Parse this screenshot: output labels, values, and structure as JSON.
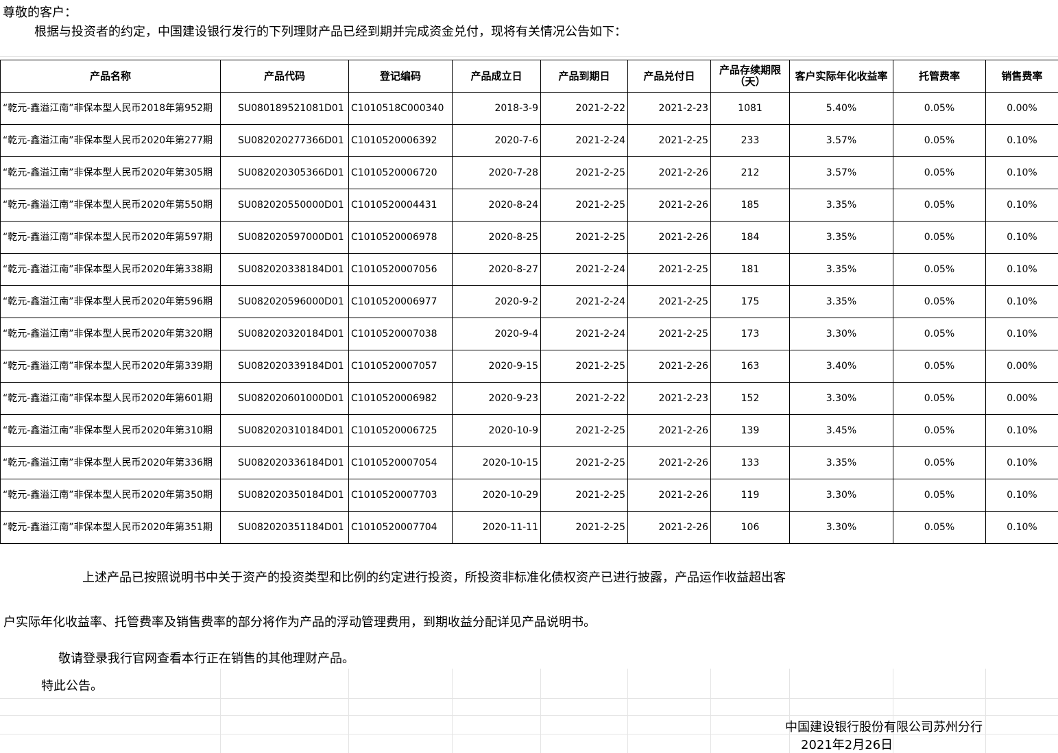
{
  "greeting": "尊敬的客户：",
  "intro": "根据与投资者的约定，中国建设银行发行的下列理财产品已经到期并完成资金兑付，现将有关情况公告如下：",
  "table": {
    "headers": [
      "产品名称",
      "产品代码",
      "登记编码",
      "产品成立日",
      "产品到期日",
      "产品兑付日",
      "产品存续期限（天）",
      "客户实际年化收益率",
      "托管费率",
      "销售费率"
    ],
    "rows": [
      [
        "“乾元-鑫溢江南”非保本型人民币2018年第952期",
        "SU080189521081D01",
        "C1010518C000340",
        "2018-3-9",
        "2021-2-22",
        "2021-2-23",
        "1081",
        "5.40%",
        "0.05%",
        "0.00%"
      ],
      [
        "“乾元-鑫溢江南”非保本型人民币2020年第277期",
        "SU082020277366D01",
        "C1010520006392",
        "2020-7-6",
        "2021-2-24",
        "2021-2-25",
        "233",
        "3.57%",
        "0.05%",
        "0.10%"
      ],
      [
        "“乾元-鑫溢江南”非保本型人民币2020年第305期",
        "SU082020305366D01",
        "C1010520006720",
        "2020-7-28",
        "2021-2-25",
        "2021-2-26",
        "212",
        "3.57%",
        "0.05%",
        "0.10%"
      ],
      [
        "“乾元-鑫溢江南”非保本型人民币2020年第550期",
        "SU082020550000D01",
        "C1010520004431",
        "2020-8-24",
        "2021-2-25",
        "2021-2-26",
        "185",
        "3.35%",
        "0.05%",
        "0.10%"
      ],
      [
        "“乾元-鑫溢江南”非保本型人民币2020年第597期",
        "SU082020597000D01",
        "C1010520006978",
        "2020-8-25",
        "2021-2-25",
        "2021-2-26",
        "184",
        "3.35%",
        "0.05%",
        "0.10%"
      ],
      [
        "“乾元-鑫溢江南”非保本型人民币2020年第338期",
        "SU082020338184D01",
        "C1010520007056",
        "2020-8-27",
        "2021-2-24",
        "2021-2-25",
        "181",
        "3.35%",
        "0.05%",
        "0.10%"
      ],
      [
        "“乾元-鑫溢江南”非保本型人民币2020年第596期",
        "SU082020596000D01",
        "C1010520006977",
        "2020-9-2",
        "2021-2-24",
        "2021-2-25",
        "175",
        "3.35%",
        "0.05%",
        "0.10%"
      ],
      [
        "“乾元-鑫溢江南”非保本型人民币2020年第320期",
        "SU082020320184D01",
        "C1010520007038",
        "2020-9-4",
        "2021-2-24",
        "2021-2-25",
        "173",
        "3.30%",
        "0.05%",
        "0.10%"
      ],
      [
        "“乾元-鑫溢江南”非保本型人民币2020年第339期",
        "SU082020339184D01",
        "C1010520007057",
        "2020-9-15",
        "2021-2-25",
        "2021-2-26",
        "163",
        "3.40%",
        "0.05%",
        "0.00%"
      ],
      [
        "“乾元-鑫溢江南”非保本型人民币2020年第601期",
        "SU082020601000D01",
        "C1010520006982",
        "2020-9-23",
        "2021-2-22",
        "2021-2-23",
        "152",
        "3.30%",
        "0.05%",
        "0.00%"
      ],
      [
        "“乾元-鑫溢江南”非保本型人民币2020年第310期",
        "SU082020310184D01",
        "C1010520006725",
        "2020-10-9",
        "2021-2-25",
        "2021-2-26",
        "139",
        "3.45%",
        "0.05%",
        "0.10%"
      ],
      [
        "“乾元-鑫溢江南”非保本型人民币2020年第336期",
        "SU082020336184D01",
        "C1010520007054",
        "2020-10-15",
        "2021-2-25",
        "2021-2-26",
        "133",
        "3.35%",
        "0.05%",
        "0.10%"
      ],
      [
        "“乾元-鑫溢江南”非保本型人民币2020年第350期",
        "SU082020350184D01",
        "C1010520007703",
        "2020-10-29",
        "2021-2-25",
        "2021-2-26",
        "119",
        "3.30%",
        "0.05%",
        "0.10%"
      ],
      [
        "“乾元-鑫溢江南”非保本型人民币2020年第351期",
        "SU082020351184D01",
        "C1010520007704",
        "2020-11-11",
        "2021-2-25",
        "2021-2-26",
        "106",
        "3.30%",
        "0.05%",
        "0.10%"
      ]
    ]
  },
  "paragraphs": [
    "上述产品已按照说明书中关于资产的投资类型和比例的约定进行投资，所投资非标准化债权资产已进行披露，产品运作收益超出客",
    "户实际年化收益率、托管费率及销售费率的部分将作为产品的浮动管理费用，到期收益分配详见产品说明书。",
    "敬请登录我行官网查看本行正在销售的其他理财产品。",
    "特此公告。"
  ],
  "signature": {
    "org": "中国建设银行股份有限公司苏州分行",
    "date": "2021年2月26日"
  }
}
